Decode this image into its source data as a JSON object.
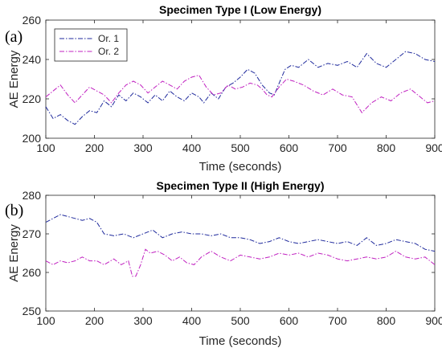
{
  "chart_data": [
    {
      "panel_label": "(a)",
      "type": "line",
      "title": "Specimen Type I (Low Energy)",
      "xlabel": "Time (seconds)",
      "ylabel": "AE Energy",
      "xlim": [
        100,
        900
      ],
      "ylim": [
        200,
        260
      ],
      "xticks": [
        100,
        200,
        300,
        400,
        500,
        600,
        700,
        800,
        900
      ],
      "yticks": [
        200,
        220,
        240,
        260
      ],
      "grid": false,
      "legend": {
        "position": "top-left",
        "show": true
      },
      "series": [
        {
          "name": "Or. 1",
          "color": "#1f2a9c",
          "style": "dash-dot",
          "points": [
            [
              100,
              216
            ],
            [
              115,
              210
            ],
            [
              130,
              212
            ],
            [
              145,
              209
            ],
            [
              160,
              207
            ],
            [
              175,
              211
            ],
            [
              190,
              214
            ],
            [
              205,
              213
            ],
            [
              220,
              219
            ],
            [
              235,
              216
            ],
            [
              250,
              222
            ],
            [
              265,
              219
            ],
            [
              280,
              223
            ],
            [
              295,
              221
            ],
            [
              310,
              218
            ],
            [
              325,
              222
            ],
            [
              340,
              219
            ],
            [
              355,
              224
            ],
            [
              370,
              221
            ],
            [
              385,
              219
            ],
            [
              400,
              223
            ],
            [
              415,
              221
            ],
            [
              425,
              218
            ],
            [
              440,
              223
            ],
            [
              455,
              220
            ],
            [
              470,
              226
            ],
            [
              485,
              228
            ],
            [
              500,
              231
            ],
            [
              515,
              235
            ],
            [
              530,
              233
            ],
            [
              545,
              227
            ],
            [
              560,
              223
            ],
            [
              570,
              222
            ],
            [
              580,
              228
            ],
            [
              592,
              235
            ],
            [
              605,
              237
            ],
            [
              620,
              236
            ],
            [
              640,
              240
            ],
            [
              660,
              236
            ],
            [
              680,
              238
            ],
            [
              700,
              237
            ],
            [
              720,
              239
            ],
            [
              740,
              236
            ],
            [
              760,
              243
            ],
            [
              780,
              238
            ],
            [
              800,
              236
            ],
            [
              820,
              240
            ],
            [
              840,
              244
            ],
            [
              860,
              243
            ],
            [
              880,
              240
            ],
            [
              900,
              239
            ]
          ]
        },
        {
          "name": "Or. 2",
          "color": "#c020c0",
          "style": "dash-dot",
          "points": [
            [
              100,
              221
            ],
            [
              115,
              224
            ],
            [
              130,
              227
            ],
            [
              145,
              222
            ],
            [
              160,
              218
            ],
            [
              175,
              222
            ],
            [
              190,
              226
            ],
            [
              205,
              224
            ],
            [
              220,
              222
            ],
            [
              235,
              218
            ],
            [
              250,
              223
            ],
            [
              265,
              227
            ],
            [
              280,
              229
            ],
            [
              295,
              227
            ],
            [
              310,
              223
            ],
            [
              325,
              226
            ],
            [
              340,
              229
            ],
            [
              355,
              227
            ],
            [
              370,
              225
            ],
            [
              385,
              229
            ],
            [
              400,
              231
            ],
            [
              415,
              232
            ],
            [
              430,
              226
            ],
            [
              445,
              222
            ],
            [
              460,
              223
            ],
            [
              475,
              227
            ],
            [
              490,
              225
            ],
            [
              505,
              226
            ],
            [
              520,
              228
            ],
            [
              535,
              227
            ],
            [
              545,
              225
            ],
            [
              555,
              222
            ],
            [
              565,
              221
            ],
            [
              580,
              226
            ],
            [
              595,
              230
            ],
            [
              610,
              229
            ],
            [
              630,
              227
            ],
            [
              650,
              224
            ],
            [
              670,
              222
            ],
            [
              690,
              225
            ],
            [
              710,
              222
            ],
            [
              730,
              221
            ],
            [
              750,
              213
            ],
            [
              770,
              218
            ],
            [
              790,
              221
            ],
            [
              810,
              219
            ],
            [
              830,
              223
            ],
            [
              850,
              225
            ],
            [
              870,
              221
            ],
            [
              885,
              218
            ],
            [
              900,
              219
            ]
          ]
        }
      ]
    },
    {
      "panel_label": "(b)",
      "type": "line",
      "title": "Specimen Type II (High Energy)",
      "xlabel": "Time (seconds)",
      "ylabel": "AE Energy",
      "xlim": [
        100,
        900
      ],
      "ylim": [
        250,
        280
      ],
      "xticks": [
        100,
        200,
        300,
        400,
        500,
        600,
        700,
        800,
        900
      ],
      "yticks": [
        250,
        260,
        270,
        280
      ],
      "grid": false,
      "legend": {
        "show": false
      },
      "series": [
        {
          "name": "Or. 1",
          "color": "#1f2a9c",
          "style": "dash-dot",
          "points": [
            [
              100,
              273
            ],
            [
              115,
              274
            ],
            [
              130,
              275
            ],
            [
              145,
              274.5
            ],
            [
              160,
              274
            ],
            [
              175,
              273.5
            ],
            [
              190,
              274
            ],
            [
              205,
              273
            ],
            [
              220,
              270
            ],
            [
              240,
              269.5
            ],
            [
              260,
              270
            ],
            [
              280,
              269
            ],
            [
              300,
              270
            ],
            [
              320,
              271
            ],
            [
              340,
              269
            ],
            [
              360,
              270
            ],
            [
              380,
              270.5
            ],
            [
              400,
              270
            ],
            [
              420,
              270
            ],
            [
              440,
              269.5
            ],
            [
              460,
              270
            ],
            [
              480,
              269
            ],
            [
              500,
              269
            ],
            [
              520,
              268.5
            ],
            [
              540,
              267.5
            ],
            [
              560,
              268
            ],
            [
              580,
              269
            ],
            [
              600,
              268
            ],
            [
              620,
              267.5
            ],
            [
              640,
              268
            ],
            [
              660,
              268.5
            ],
            [
              680,
              268
            ],
            [
              700,
              267.5
            ],
            [
              720,
              268
            ],
            [
              740,
              267
            ],
            [
              760,
              269
            ],
            [
              780,
              267
            ],
            [
              800,
              267.5
            ],
            [
              820,
              268.5
            ],
            [
              840,
              268
            ],
            [
              860,
              267.5
            ],
            [
              880,
              266
            ],
            [
              900,
              265.5
            ]
          ]
        },
        {
          "name": "Or. 2",
          "color": "#c020c0",
          "style": "dash-dot",
          "points": [
            [
              100,
              263
            ],
            [
              115,
              262
            ],
            [
              130,
              263
            ],
            [
              145,
              262.5
            ],
            [
              160,
              263
            ],
            [
              175,
              264
            ],
            [
              190,
              263
            ],
            [
              205,
              263
            ],
            [
              220,
              262
            ],
            [
              240,
              263.5
            ],
            [
              255,
              262
            ],
            [
              270,
              263
            ],
            [
              278,
              259
            ],
            [
              285,
              259
            ],
            [
              295,
              262
            ],
            [
              305,
              266
            ],
            [
              315,
              265
            ],
            [
              330,
              265.5
            ],
            [
              345,
              264.5
            ],
            [
              360,
              263
            ],
            [
              375,
              264
            ],
            [
              390,
              262.5
            ],
            [
              405,
              262
            ],
            [
              420,
              264
            ],
            [
              440,
              265.5
            ],
            [
              460,
              264
            ],
            [
              480,
              263
            ],
            [
              500,
              264.5
            ],
            [
              520,
              264
            ],
            [
              540,
              263.5
            ],
            [
              560,
              264
            ],
            [
              580,
              265
            ],
            [
              600,
              264.5
            ],
            [
              620,
              265
            ],
            [
              640,
              264
            ],
            [
              660,
              265
            ],
            [
              680,
              264.5
            ],
            [
              700,
              263.5
            ],
            [
              720,
              263
            ],
            [
              740,
              263.5
            ],
            [
              760,
              264
            ],
            [
              780,
              263.5
            ],
            [
              800,
              264
            ],
            [
              820,
              265.5
            ],
            [
              840,
              264
            ],
            [
              860,
              263.5
            ],
            [
              880,
              264
            ],
            [
              900,
              262
            ]
          ]
        }
      ]
    }
  ]
}
